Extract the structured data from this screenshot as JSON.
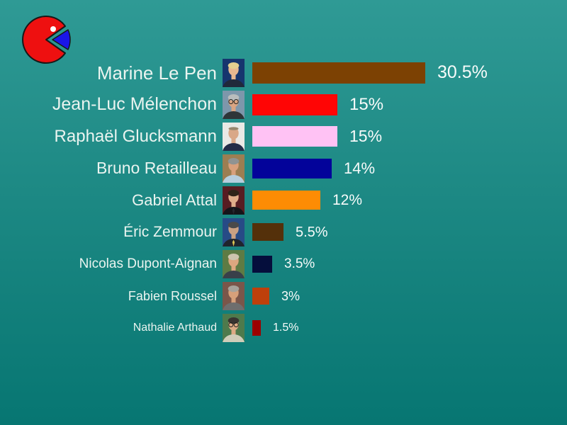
{
  "page": {
    "background_top_color": "#2f9a95",
    "background_bottom_color": "#077672",
    "name_text_color": "#eaf4f0",
    "value_text_color": "#f7fbfa"
  },
  "logo": {
    "label": "pie-pacman-logo",
    "body_color": "#ee1010",
    "slice_color": "#1a16e8",
    "eye_color": "#ffffff",
    "outline_color": "#181818"
  },
  "chart_data": {
    "type": "bar",
    "orientation": "horizontal",
    "title": "",
    "unit": "%",
    "categories": [
      "Marine Le Pen",
      "Jean-Luc Mélenchon",
      "Raphaël Glucksmann",
      "Bruno Retailleau",
      "Gabriel Attal",
      "Éric Zemmour",
      "Nicolas Dupont-Aignan",
      "Fabien Roussel",
      "Nathalie Arthaud"
    ],
    "values": [
      30.5,
      15,
      15,
      14,
      12,
      5.5,
      3.5,
      3,
      1.5
    ],
    "value_labels": [
      "30.5%",
      "15%",
      "15%",
      "14%",
      "12%",
      "5.5%",
      "3.5%",
      "3%",
      "1.5%"
    ],
    "bar_colors": [
      "#7c4103",
      "#ff0505",
      "#ffc2f4",
      "#03039a",
      "#fd8c04",
      "#54300a",
      "#050e3c",
      "#be400b",
      "#9b0101"
    ],
    "xlim": [
      0,
      31
    ],
    "grid": false,
    "legend_position": "none"
  },
  "avatars": [
    {
      "desc": "portrait-marine-le-pen",
      "bg": "#16356e",
      "hair": "#e3cf8f",
      "skin": "#e8b890",
      "clothes": "#20283a",
      "glasses": false,
      "bald": false,
      "tie": ""
    },
    {
      "desc": "portrait-jean-luc-melenchon",
      "bg": "#7d97ab",
      "hair": "#b9bdbd",
      "skin": "#d9a583",
      "clothes": "#2e3538",
      "glasses": true,
      "bald": false,
      "tie": ""
    },
    {
      "desc": "portrait-raphael-glucksmann",
      "bg": "#e9e9e5",
      "hair": "#97876d",
      "skin": "#d9a887",
      "clothes": "#232c47",
      "glasses": false,
      "bald": true,
      "tie": ""
    },
    {
      "desc": "portrait-bruno-retailleau",
      "bg": "#9c7e52",
      "hair": "#8f9392",
      "skin": "#d8a07c",
      "clothes": "#b6cede",
      "glasses": false,
      "bald": false,
      "tie": ""
    },
    {
      "desc": "portrait-gabriel-attal",
      "bg": "#571d22",
      "hair": "#2f2318",
      "skin": "#e0ad8a",
      "clothes": "#15151a",
      "glasses": false,
      "bald": false,
      "tie": "#26262e"
    },
    {
      "desc": "portrait-eric-zemmour",
      "bg": "#274b86",
      "hair": "#4a4a4a",
      "skin": "#caa183",
      "clothes": "#20242c",
      "glasses": false,
      "bald": false,
      "tie": "#d8c253"
    },
    {
      "desc": "portrait-nicolas-dupont-aignan",
      "bg": "#5e7b44",
      "hair": "#cdc5ae",
      "skin": "#dca77f",
      "clothes": "#39404a",
      "glasses": false,
      "bald": false,
      "tie": ""
    },
    {
      "desc": "portrait-fabien-roussel",
      "bg": "#7a564a",
      "hair": "#a7a39b",
      "skin": "#d7a07a",
      "clothes": "#6e6e6e",
      "glasses": false,
      "bald": false,
      "tie": ""
    },
    {
      "desc": "portrait-nathalie-arthaud",
      "bg": "#4e7a4c",
      "hair": "#383431",
      "skin": "#dcab85",
      "clothes": "#cfcdb9",
      "glasses": true,
      "bald": false,
      "tie": ""
    }
  ]
}
